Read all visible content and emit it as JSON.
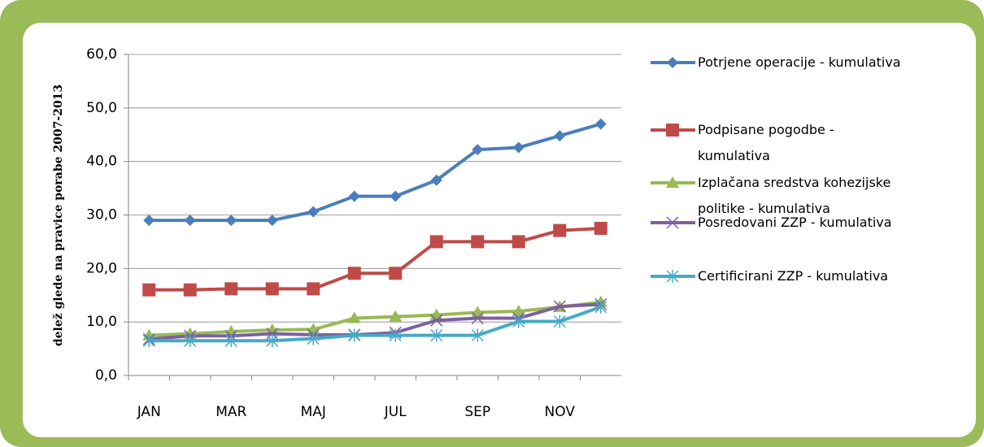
{
  "chart_data": {
    "type": "line",
    "y_label": "delež glede na pravice porabe 2007-2013",
    "categories": [
      "JAN",
      null,
      "MAR",
      null,
      "MAJ",
      null,
      "JUL",
      null,
      "SEP",
      null,
      "NOV",
      null
    ],
    "ylim": [
      0,
      60
    ],
    "yticks": [
      {
        "value": 0,
        "label": "0,0"
      },
      {
        "value": 10,
        "label": "10,0"
      },
      {
        "value": 20,
        "label": "20,0"
      },
      {
        "value": 30,
        "label": "30,0"
      },
      {
        "value": 40,
        "label": "40,0"
      },
      {
        "value": 50,
        "label": "50,0"
      },
      {
        "value": 60,
        "label": "60,0"
      }
    ],
    "grid": true,
    "legend": "right",
    "series": [
      {
        "name": "Potrjene operacije - kumulativa",
        "color": "#4a7ebb",
        "marker": "diamond",
        "values": [
          29,
          29,
          29,
          29,
          30.6,
          33.5,
          33.5,
          36.5,
          42.2,
          42.6,
          44.8,
          47
        ]
      },
      {
        "name": "Podpisane pogodbe - kumulativa",
        "color": "#be4b48",
        "marker": "square",
        "values": [
          16,
          16,
          16.2,
          16.2,
          16.2,
          19.1,
          19.1,
          25,
          25,
          25,
          27.1,
          27.5
        ]
      },
      {
        "name": "Izplačana sredstva kohezijske politike - kumulativa",
        "color": "#98b954",
        "marker": "triangle",
        "values": [
          7.5,
          7.8,
          8.2,
          8.5,
          8.6,
          10.7,
          11,
          11.3,
          11.8,
          12,
          12.8,
          13.7
        ]
      },
      {
        "name": "Posredovani ZZP - kumulativa",
        "color": "#7d60a0",
        "marker": "x",
        "values": [
          6.8,
          7.4,
          7.4,
          7.8,
          7.6,
          7.6,
          8,
          10.3,
          10.7,
          10.7,
          12.9,
          13.3
        ]
      },
      {
        "name": "Certificirani ZZP - kumulativa",
        "color": "#46aac5",
        "marker": "star",
        "values": [
          6.5,
          6.5,
          6.5,
          6.5,
          6.9,
          7.5,
          7.5,
          7.5,
          7.5,
          10.1,
          10.1,
          12.8
        ]
      }
    ]
  }
}
